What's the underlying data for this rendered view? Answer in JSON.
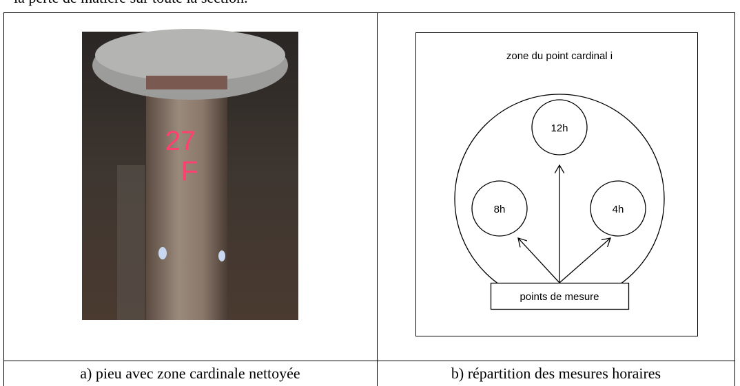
{
  "intro_text": "la perte de matière sur toute la section.",
  "table": {
    "photo": {
      "marking_top": "27",
      "marking_bottom": "F"
    },
    "diagram": {
      "zone_label": "zone du point cardinal i",
      "points": [
        "12h",
        "8h",
        "4h"
      ],
      "measure_label": "points de mesure"
    },
    "captions": [
      "a) pieu avec zone cardinale nettoyée",
      "b) répartition des mesures horaires"
    ]
  }
}
